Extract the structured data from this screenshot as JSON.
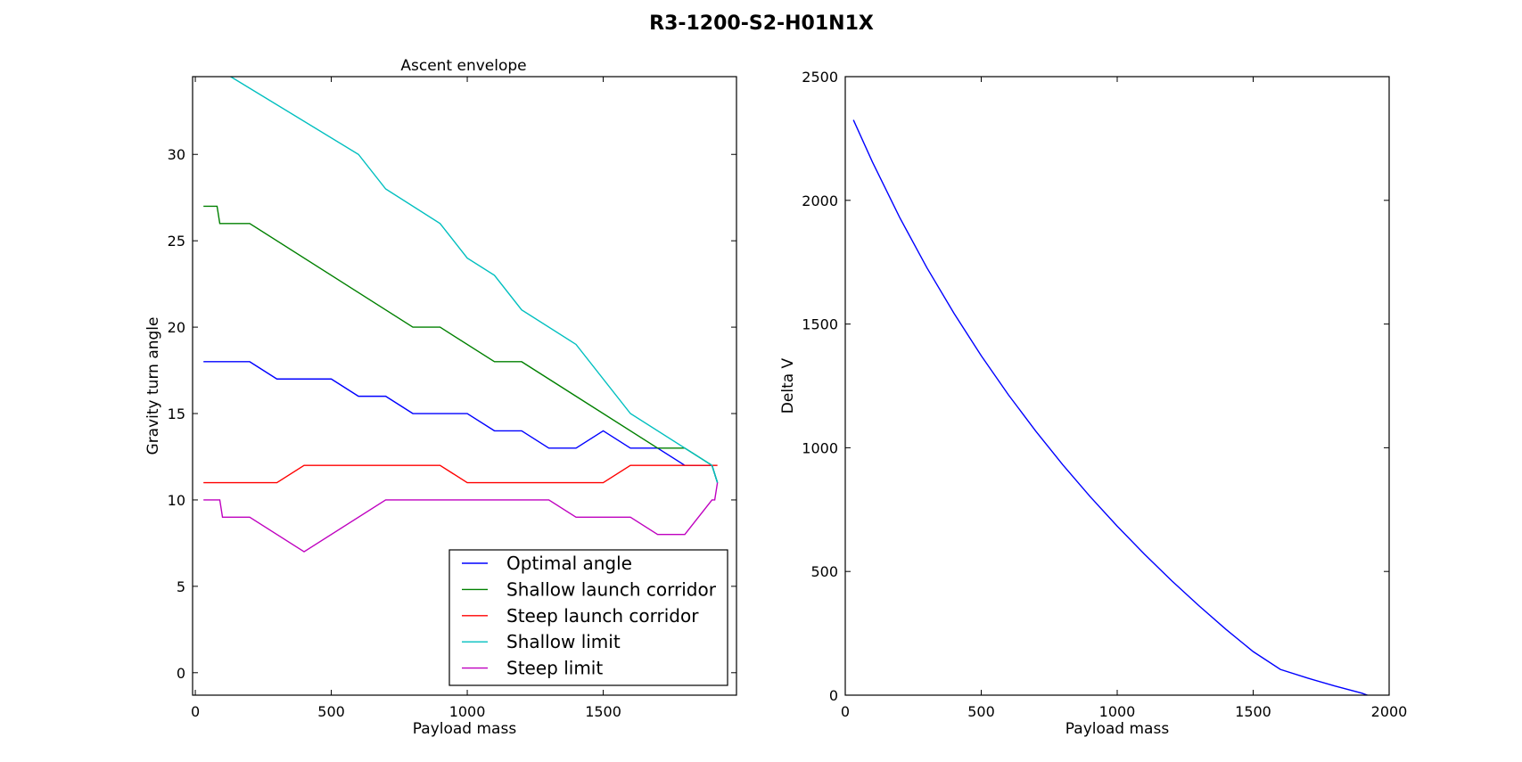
{
  "figure": {
    "title": "R3-1200-S2-H01N1X"
  },
  "chart_data": [
    {
      "type": "line",
      "title": "Ascent envelope",
      "xlabel": "Payload mass",
      "ylabel": "Gravity turn angle",
      "xlim": [
        -10,
        1990
      ],
      "ylim": [
        -1.3,
        34.5
      ],
      "xticks": [
        0,
        500,
        1000,
        1500
      ],
      "yticks": [
        0,
        5,
        10,
        15,
        20,
        25,
        30
      ],
      "legend": "lower-right",
      "grid": false,
      "series": [
        {
          "name": "Optimal angle",
          "color": "#0000ff",
          "x": [
            30,
            200,
            300,
            500,
            600,
            700,
            800,
            1000,
            1100,
            1200,
            1300,
            1400,
            1500,
            1600,
            1700,
            1800,
            1900,
            1920
          ],
          "y": [
            18,
            18,
            17,
            17,
            16,
            16,
            15,
            15,
            14,
            14,
            13,
            13,
            14,
            13,
            13,
            12,
            12,
            11
          ]
        },
        {
          "name": "Shallow launch corridor",
          "color": "#008000",
          "x": [
            30,
            80,
            90,
            200,
            800,
            900,
            1100,
            1200,
            1700,
            1800,
            1900,
            1920
          ],
          "y": [
            27,
            27,
            26,
            26,
            20,
            20,
            18,
            18,
            13,
            13,
            12,
            11
          ]
        },
        {
          "name": "Steep launch corridor",
          "color": "#ff0000",
          "x": [
            30,
            300,
            400,
            900,
            1000,
            1500,
            1600,
            1900,
            1920
          ],
          "y": [
            11,
            11,
            12,
            12,
            11,
            11,
            12,
            12,
            12
          ]
        },
        {
          "name": "Shallow limit",
          "color": "#00bfbf",
          "x": [
            30,
            130,
            600,
            700,
            900,
            1000,
            1100,
            1200,
            1400,
            1600,
            1900,
            1920
          ],
          "y": [
            35.5,
            34.5,
            30,
            28,
            26,
            24,
            23,
            21,
            19,
            15,
            12,
            11
          ]
        },
        {
          "name": "Steep limit",
          "color": "#bf00bf",
          "x": [
            30,
            90,
            100,
            200,
            400,
            700,
            1300,
            1400,
            1600,
            1700,
            1800,
            1900,
            1910,
            1920
          ],
          "y": [
            10,
            10,
            9,
            9,
            7,
            10,
            10,
            9,
            9,
            8,
            8,
            10,
            10,
            11
          ]
        }
      ]
    },
    {
      "type": "line",
      "title": "",
      "xlabel": "Payload mass",
      "ylabel": "Delta V",
      "xlim": [
        0,
        2000
      ],
      "ylim": [
        0,
        2500
      ],
      "xticks": [
        0,
        500,
        1000,
        1500,
        2000
      ],
      "yticks": [
        0,
        500,
        1000,
        1500,
        2000,
        2500
      ],
      "grid": false,
      "series": [
        {
          "color": "#0000ff",
          "x": [
            30,
            100,
            200,
            300,
            400,
            500,
            600,
            700,
            800,
            900,
            1000,
            1100,
            1200,
            1300,
            1400,
            1500,
            1600,
            1700,
            1800,
            1900,
            1920
          ],
          "y": [
            2325,
            2155,
            1931,
            1728,
            1543,
            1372,
            1214,
            1068,
            931,
            803,
            683,
            570,
            463,
            362,
            266,
            176,
            104,
            69,
            37,
            8,
            0
          ]
        }
      ]
    }
  ]
}
